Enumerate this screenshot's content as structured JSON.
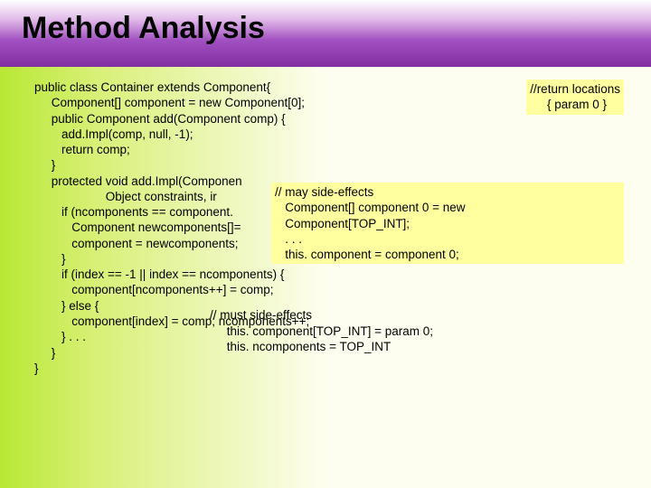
{
  "title": "Method Analysis",
  "code": "public class Container extends Component{\n     Component[] component = new Component[0];\n     public Component add(Component comp) {\n        add.Impl(comp, null, -1);\n        return comp;\n     }\n     protected void add.Impl(Componen\n                     Object constraints, ir\n        if (ncomponents == component.\n           Component newcomponents[]=\n           component = newcomponents;\n        }\n        if (index == -1 || index == ncomponents) {\n           component[ncomponents++] = comp;\n        } else {\n           component[index] = comp; ncomponents++;\n        } . . .\n     }\n}",
  "annotations": {
    "return": "//return locations\n     { param 0 }",
    "side": "// may side-effects\n   Component[] component 0 = new\n   Component[TOP_INT];\n   . . .\n   this. component = component 0;",
    "must": "// must side-effects\n     this. component[TOP_INT] = param 0;\n     this. ncomponents = TOP_INT"
  },
  "colors": {
    "header_gradient_start": "#ffffff",
    "header_gradient_end": "#8030a0",
    "body_gradient_start": "#b8e834",
    "body_gradient_end": "#fefef0",
    "annotation_bg": "#ffffa0",
    "text": "#000000"
  }
}
